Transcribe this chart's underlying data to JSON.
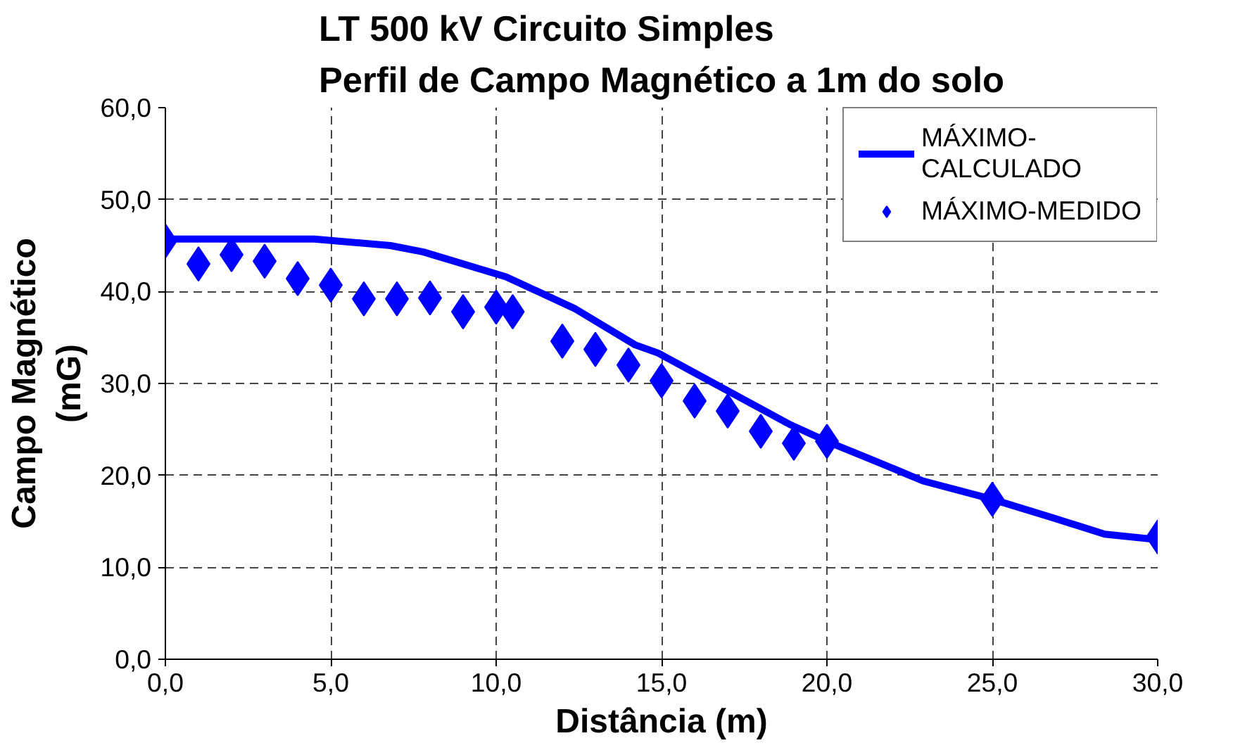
{
  "chart_data": {
    "type": "line",
    "title": "LT 500 kV Circuito Simples\nPerfil de Campo Magnético a 1m do solo",
    "xlabel": "Distância (m)",
    "ylabel": "Campo Magnético\n(mG)",
    "xlim": [
      0,
      30
    ],
    "xticks": [
      {
        "value": 0,
        "label": "0,0"
      },
      {
        "value": 5,
        "label": "5,0"
      },
      {
        "value": 10,
        "label": "10,0"
      },
      {
        "value": 15,
        "label": "15,0"
      },
      {
        "value": 20,
        "label": "20,0"
      },
      {
        "value": 25,
        "label": "25,0"
      },
      {
        "value": 30,
        "label": "30,0"
      }
    ],
    "ylim": [
      0,
      60
    ],
    "yticks": [
      {
        "value": 0,
        "label": "0,0"
      },
      {
        "value": 10,
        "label": "10,0"
      },
      {
        "value": 20,
        "label": "20,0"
      },
      {
        "value": 30,
        "label": "30,0"
      },
      {
        "value": 40,
        "label": "40,0"
      },
      {
        "value": 50,
        "label": "50,0"
      },
      {
        "value": 60,
        "label": "60,0"
      }
    ],
    "grid": true,
    "legend": "top right",
    "series": [
      {
        "name": "MÁXIMO-CALCULADO",
        "color": "#0000ff",
        "marker": "none",
        "x": [
          0,
          4.5,
          6.8,
          7.8,
          10.3,
          12.4,
          14.2,
          14.9,
          16.9,
          18.9,
          20,
          21.5,
          22.9,
          25,
          26.9,
          28.4,
          30
        ],
        "values": [
          45.7,
          45.7,
          45.0,
          44.3,
          41.6,
          38.1,
          34.2,
          33.3,
          29.4,
          25.5,
          23.7,
          21.5,
          19.4,
          17.4,
          15.3,
          13.6,
          13.0
        ]
      },
      {
        "name": "MÁXIMO-MEDIDO",
        "type": "scatter",
        "color": "#0000ff",
        "marker": "diamond",
        "x": [
          0,
          1,
          2,
          3,
          4,
          5,
          6,
          7,
          8,
          9,
          10,
          10.5,
          12,
          13,
          14,
          15,
          16,
          17,
          18,
          19,
          20,
          25,
          30
        ],
        "values": [
          45.5,
          43.0,
          44.0,
          43.3,
          41.4,
          40.7,
          39.2,
          39.2,
          39.3,
          37.8,
          38.3,
          37.8,
          34.6,
          33.7,
          32.0,
          30.3,
          28.1,
          27.0,
          24.8,
          23.5,
          23.7,
          17.4,
          13.3
        ]
      }
    ]
  }
}
